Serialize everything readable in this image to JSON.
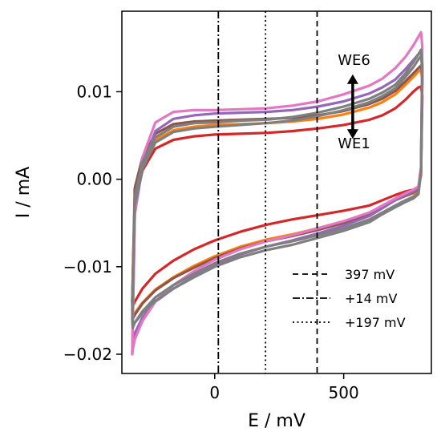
{
  "chart_data": {
    "type": "line",
    "xlabel": "E / mV",
    "ylabel": "I / mA",
    "xlim": [
      -360,
      840
    ],
    "ylim": [
      -0.0222,
      0.0192
    ],
    "xticks": [
      {
        "value": 0,
        "label": "0"
      },
      {
        "value": 500,
        "label": "500"
      }
    ],
    "yticks": [
      {
        "value": 0.01,
        "label": "0.01"
      },
      {
        "value": 0.0,
        "label": "0.00"
      },
      {
        "value": -0.01,
        "label": "−0.01"
      },
      {
        "value": -0.02,
        "label": "−0.02"
      }
    ],
    "grid": false,
    "legend_position": "lower-right",
    "vlines": [
      {
        "x": 397,
        "style": "dashed",
        "label": "397 mV"
      },
      {
        "x": 14,
        "style": "dashdot",
        "label": "+14 mV"
      },
      {
        "x": 197,
        "style": "dotted",
        "label": "+197 mV"
      }
    ],
    "annotations": [
      {
        "text": "WE6",
        "x": 540,
        "y": 0.0135
      },
      {
        "text": "WE1",
        "x": 540,
        "y": 0.004
      }
    ],
    "arrow": {
      "x": 535,
      "y_from": 0.0048,
      "y_to": 0.0118
    },
    "x_points": [
      -320,
      -310,
      -280,
      -230,
      -160,
      -80,
      0,
      100,
      200,
      300,
      400,
      500,
      600,
      650,
      700,
      740,
      770,
      790,
      800,
      805,
      800,
      790,
      770,
      740,
      700,
      650,
      600,
      500,
      400,
      300,
      200,
      100,
      0,
      -80,
      -160,
      -230,
      -280,
      -310,
      -318
    ],
    "series": [
      {
        "color": "#d62728",
        "values": [
          -0.014,
          -0.003,
          0.001,
          0.0035,
          0.0045,
          0.0049,
          0.0051,
          0.0052,
          0.0053,
          0.0055,
          0.0058,
          0.0062,
          0.0068,
          0.0073,
          0.0081,
          0.0091,
          0.01,
          0.0105,
          0.0106,
          0.0095,
          0.0005,
          -0.001,
          -0.0012,
          -0.0014,
          -0.0018,
          -0.0024,
          -0.003,
          -0.0036,
          -0.0041,
          -0.0046,
          -0.0052,
          -0.006,
          -0.007,
          -0.008,
          -0.0093,
          -0.0108,
          -0.0125,
          -0.014,
          -0.0145
        ]
      },
      {
        "color": "#ff7f0e",
        "values": [
          -0.014,
          -0.002,
          0.0015,
          0.0045,
          0.0056,
          0.006,
          0.0062,
          0.0063,
          0.0064,
          0.0066,
          0.0069,
          0.0074,
          0.0082,
          0.0088,
          0.0097,
          0.0108,
          0.0117,
          0.0123,
          0.0125,
          0.0112,
          0.0008,
          -0.0012,
          -0.0016,
          -0.0019,
          -0.0024,
          -0.0031,
          -0.0039,
          -0.0048,
          -0.0056,
          -0.0063,
          -0.0069,
          -0.0077,
          -0.0088,
          -0.0099,
          -0.0112,
          -0.0126,
          -0.0141,
          -0.0153,
          -0.0158
        ]
      },
      {
        "color": "#8c564b",
        "values": [
          -0.014,
          -0.001,
          0.0025,
          0.0052,
          0.0063,
          0.0066,
          0.0067,
          0.0068,
          0.0069,
          0.007,
          0.0073,
          0.0078,
          0.0086,
          0.0092,
          0.0101,
          0.0112,
          0.0121,
          0.0127,
          0.013,
          0.0117,
          0.001,
          -0.0011,
          -0.0015,
          -0.0019,
          -0.0024,
          -0.0032,
          -0.004,
          -0.005,
          -0.0058,
          -0.0065,
          -0.0071,
          -0.0079,
          -0.009,
          -0.0101,
          -0.0113,
          -0.0127,
          -0.0142,
          -0.0155,
          -0.016
        ]
      },
      {
        "color": "#9467bd",
        "values": [
          -0.02,
          -0.004,
          0.0015,
          0.0055,
          0.0069,
          0.0073,
          0.0075,
          0.0076,
          0.0077,
          0.0079,
          0.0083,
          0.0089,
          0.0098,
          0.0105,
          0.0114,
          0.0126,
          0.0136,
          0.0143,
          0.0146,
          0.013,
          0.0012,
          -0.0009,
          -0.0014,
          -0.0018,
          -0.0024,
          -0.0033,
          -0.0042,
          -0.0053,
          -0.0062,
          -0.007,
          -0.0077,
          -0.0086,
          -0.0098,
          -0.0111,
          -0.0125,
          -0.014,
          -0.0158,
          -0.0176,
          -0.0182
        ]
      },
      {
        "color": "#e377c2",
        "values": [
          -0.02,
          -0.004,
          0.0025,
          0.0065,
          0.0077,
          0.0079,
          0.0079,
          0.008,
          0.0081,
          0.0084,
          0.0089,
          0.0097,
          0.0107,
          0.0115,
          0.0127,
          0.014,
          0.0153,
          0.0163,
          0.0168,
          0.0152,
          0.0014,
          -0.0008,
          -0.0012,
          -0.0016,
          -0.0022,
          -0.003,
          -0.0038,
          -0.0048,
          -0.0056,
          -0.0064,
          -0.0071,
          -0.008,
          -0.0092,
          -0.0105,
          -0.0121,
          -0.014,
          -0.0162,
          -0.0183,
          -0.0195
        ]
      },
      {
        "color": "#7f7f7f",
        "values": [
          -0.016,
          -0.002,
          0.002,
          0.0048,
          0.006,
          0.0064,
          0.0065,
          0.0067,
          0.0068,
          0.0071,
          0.0076,
          0.0083,
          0.0092,
          0.0099,
          0.0108,
          0.0121,
          0.0134,
          0.0143,
          0.0148,
          0.0132,
          0.0012,
          -0.0015,
          -0.002,
          -0.0024,
          -0.003,
          -0.0038,
          -0.0046,
          -0.0056,
          -0.0064,
          -0.0071,
          -0.0077,
          -0.0085,
          -0.0096,
          -0.0108,
          -0.0121,
          -0.0135,
          -0.0151,
          -0.0164,
          -0.017
        ]
      },
      {
        "color": "#7f7f7f",
        "values": [
          -0.015,
          -0.003,
          0.0012,
          0.0042,
          0.0054,
          0.0058,
          0.006,
          0.0062,
          0.0064,
          0.0067,
          0.0072,
          0.0079,
          0.0088,
          0.0095,
          0.0104,
          0.0117,
          0.0128,
          0.0137,
          0.0141,
          0.0126,
          0.0009,
          -0.0017,
          -0.0022,
          -0.0026,
          -0.0032,
          -0.004,
          -0.0049,
          -0.0059,
          -0.0067,
          -0.0075,
          -0.0081,
          -0.0089,
          -0.01,
          -0.0112,
          -0.0125,
          -0.0139,
          -0.0153,
          -0.0164,
          -0.0168
        ]
      }
    ]
  }
}
